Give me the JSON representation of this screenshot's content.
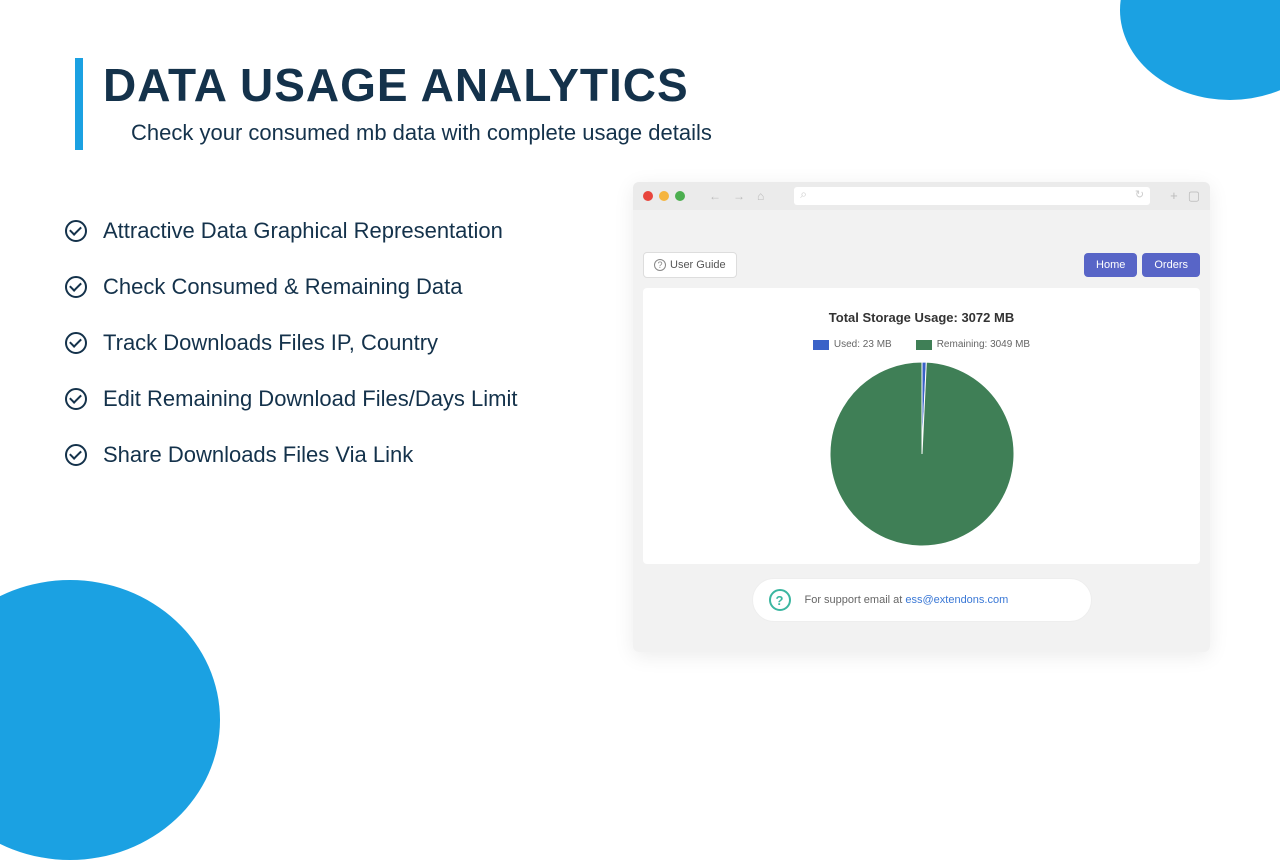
{
  "header": {
    "title": "DATA USAGE ANALYTICS",
    "subtitle": "Check your consumed mb data with complete usage details",
    "accent_color": "#1ba1e2",
    "title_color": "#14324b"
  },
  "features": [
    "Attractive Data Graphical Representation",
    "Check  Consumed & Remaining Data",
    "Track Downloads Files IP, Country",
    "Edit Remaining Download Files/Days Limit",
    "Share Downloads Files Via Link"
  ],
  "browser": {
    "user_guide_label": "User Guide",
    "nav": {
      "home": "Home",
      "orders": "Orders",
      "button_bg": "#5865c7"
    }
  },
  "chart": {
    "type": "pie",
    "title": "Total Storage Usage: 3072 MB",
    "total": 3072,
    "slices": [
      {
        "label": "Used: 23 MB",
        "value": 23,
        "color": "#3a62c8"
      },
      {
        "label": "Remaining: 3049 MB",
        "value": 3049,
        "color": "#3f7f56"
      }
    ],
    "radius": 92,
    "background": "#ffffff",
    "title_fontsize": 13,
    "legend_fontsize": 10
  },
  "support": {
    "text": "For support email at ",
    "email": "ess@extendons.com",
    "icon_color": "#3bb6a0",
    "link_color": "#3a78d6"
  }
}
